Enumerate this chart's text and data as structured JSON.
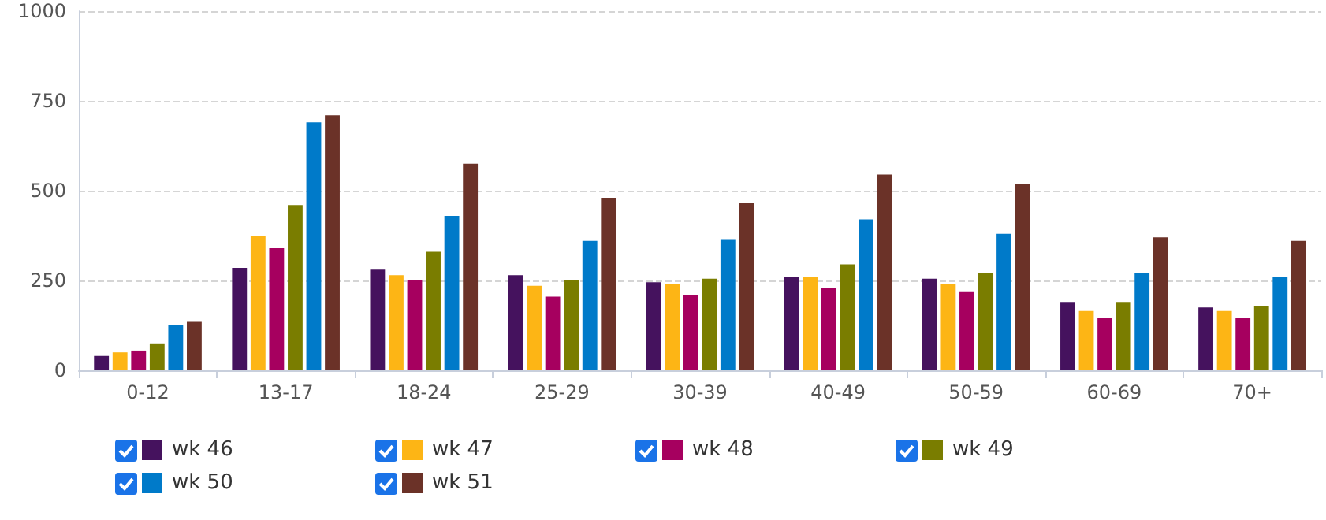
{
  "chart_data": {
    "type": "bar",
    "categories": [
      "0-12",
      "13-17",
      "18-24",
      "25-29",
      "30-39",
      "40-49",
      "50-59",
      "60-69",
      "70+"
    ],
    "series": [
      {
        "name": "wk 46",
        "color": "#45125e",
        "values": [
          40,
          285,
          280,
          265,
          245,
          260,
          255,
          190,
          175
        ]
      },
      {
        "name": "wk 47",
        "color": "#fdb515",
        "values": [
          50,
          375,
          265,
          235,
          240,
          260,
          240,
          165,
          165
        ]
      },
      {
        "name": "wk 48",
        "color": "#a6005f",
        "values": [
          55,
          340,
          250,
          205,
          210,
          230,
          220,
          145,
          145
        ]
      },
      {
        "name": "wk 49",
        "color": "#7a7d00",
        "values": [
          75,
          460,
          330,
          250,
          255,
          295,
          270,
          190,
          180
        ]
      },
      {
        "name": "wk 50",
        "color": "#007ac9",
        "values": [
          125,
          690,
          430,
          360,
          365,
          420,
          380,
          270,
          260
        ]
      },
      {
        "name": "wk 51",
        "color": "#6b3228",
        "values": [
          135,
          710,
          575,
          480,
          465,
          545,
          520,
          370,
          360
        ]
      }
    ],
    "ylim": [
      0,
      1000
    ],
    "yticks": [
      0,
      250,
      500,
      750,
      1000
    ],
    "grid": "y",
    "legend": "bottom"
  }
}
